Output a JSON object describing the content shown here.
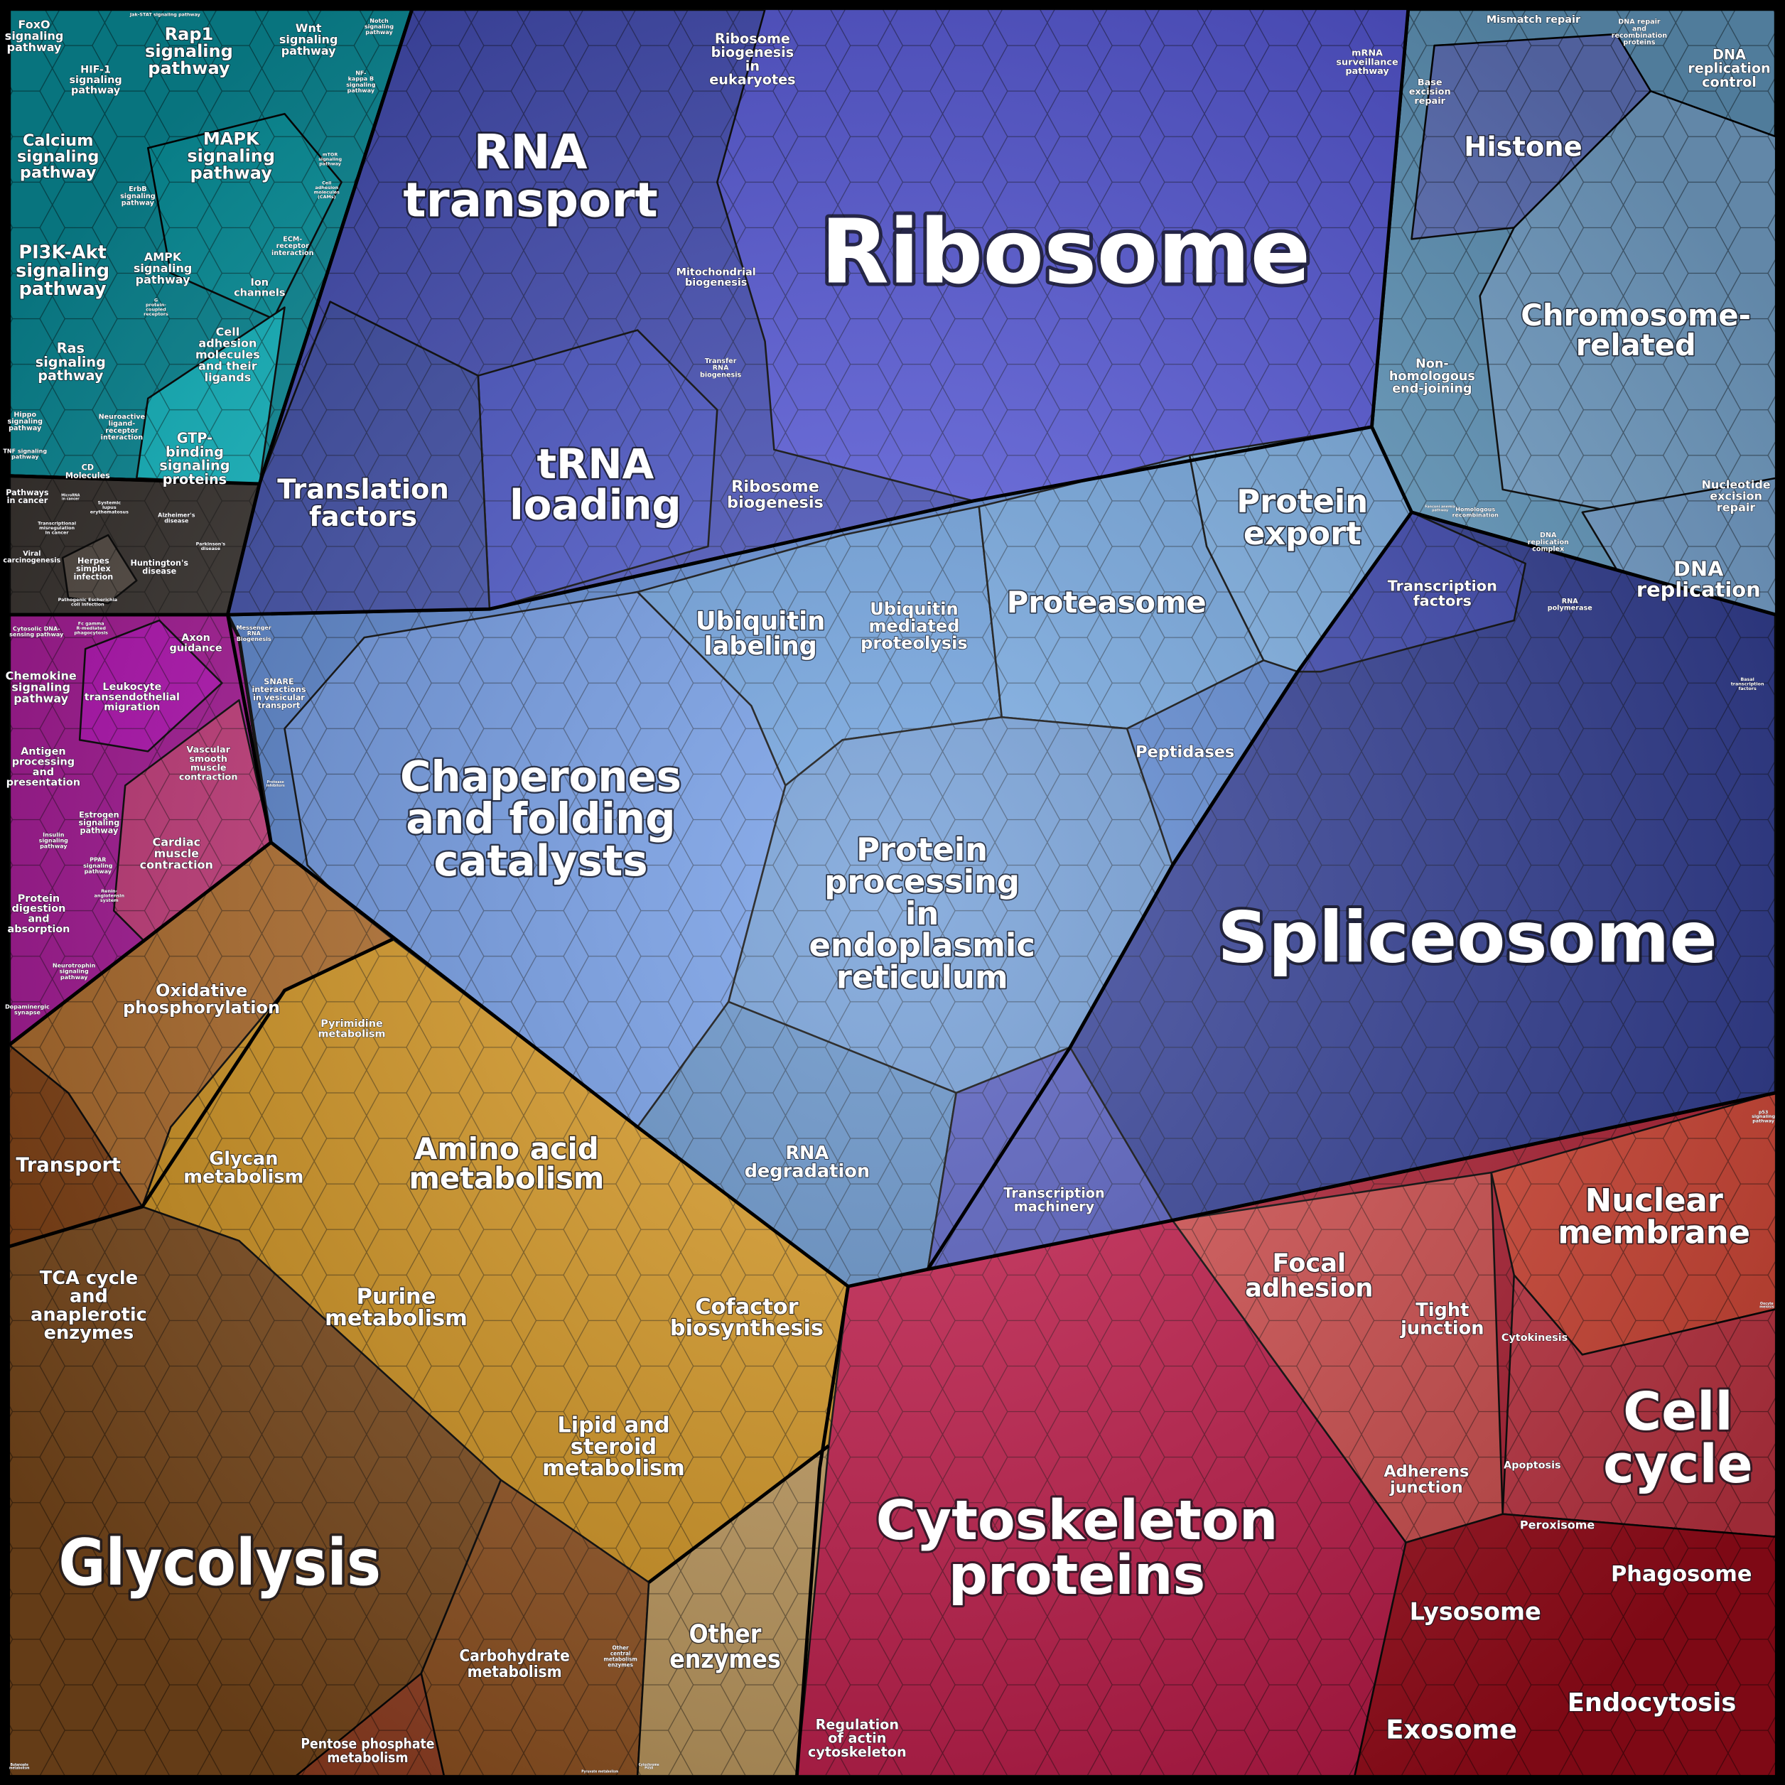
{
  "colors": {
    "signaling": "#0b9aa8",
    "disease": "#3a3430",
    "immune_muscle": "#b0169f",
    "translation": "#4650c0",
    "ribosome": "#5660e0",
    "chromosome": "#6aa6cf",
    "folding": "#5a88d6",
    "spliceosome": "#2f3c98",
    "cellular_processes": "#b82035",
    "amber_metabolism": "#dc9a1e",
    "brown_metabolism": "#8a5022",
    "other_enzymes": "#c8a060"
  },
  "labels": {
    "foxo": [
      "FoxO",
      "signaling",
      "pathway"
    ],
    "jak_stat": [
      "Jak-STAT signaling pathway"
    ],
    "rap1": [
      "Rap1",
      "signaling",
      "pathway"
    ],
    "hif1": [
      "HIF-1",
      "signaling",
      "pathway"
    ],
    "wnt": [
      "Wnt",
      "signaling",
      "pathway"
    ],
    "notch": [
      "Notch",
      "signaling",
      "pathway"
    ],
    "nfkb": [
      "NF-",
      "kappa B",
      "signaling",
      "pathway"
    ],
    "mtor": [
      "mTOR",
      "signaling",
      "pathway"
    ],
    "calcium": [
      "Calcium",
      "signaling",
      "pathway"
    ],
    "mapk": [
      "MAPK",
      "signaling",
      "pathway"
    ],
    "erbb": [
      "ErbB",
      "signaling",
      "pathway"
    ],
    "cams": [
      "Cell",
      "adhesion",
      "molecules",
      "(CAMs)"
    ],
    "pi3k": [
      "PI3K-Akt",
      "signaling",
      "pathway"
    ],
    "ampk": [
      "AMPK",
      "signaling",
      "pathway"
    ],
    "ecm": [
      "ECM-",
      "receptor",
      "interaction"
    ],
    "ion": [
      "Ion",
      "channels"
    ],
    "cell_adhesion_ligands": [
      "Cell",
      "adhesion",
      "molecules",
      "and their",
      "ligands"
    ],
    "ras": [
      "Ras",
      "signaling",
      "pathway"
    ],
    "gpcr": [
      "G",
      "protein-",
      "coupled",
      "receptors"
    ],
    "hippo": [
      "Hippo",
      "signaling",
      "pathway"
    ],
    "neuroactive": [
      "Neuroactive",
      "ligand-",
      "receptor",
      "interaction"
    ],
    "tnf": [
      "TNF signaling",
      "pathway"
    ],
    "cd": [
      "CD",
      "Molecules"
    ],
    "gtp": [
      "GTP-",
      "binding",
      "signaling",
      "proteins"
    ],
    "pathways_cancer": [
      "Pathways",
      "in cancer"
    ],
    "microrna": [
      "MicroRNA",
      "in cancer"
    ],
    "lupus": [
      "Systemic",
      "lupus",
      "erythematosus"
    ],
    "alzheimer": [
      "Alzheimer's",
      "disease"
    ],
    "transcriptional_misreg": [
      "Transcriptional",
      "misregulation",
      "in cancer"
    ],
    "viral": [
      "Viral",
      "carcinogenesis"
    ],
    "herpes": [
      "Herpes",
      "simplex",
      "infection"
    ],
    "huntington": [
      "Huntington's",
      "disease"
    ],
    "parkinson": [
      "Parkinson's",
      "disease"
    ],
    "ecoli": [
      "Pathogenic Escherichia",
      "coli infection"
    ],
    "cytosolic_dna": [
      "Cytosolic DNA-",
      "sensing pathway"
    ],
    "fc_gamma": [
      "Fc gamma",
      "R-mediated",
      "phagocytosis"
    ],
    "chemokine": [
      "Chemokine",
      "signaling",
      "pathway"
    ],
    "leukocyte": [
      "Leukocyte",
      "transendothelial",
      "migration"
    ],
    "axon": [
      "Axon",
      "guidance"
    ],
    "antigen": [
      "Antigen",
      "processing",
      "and",
      "presentation"
    ],
    "vascular": [
      "Vascular",
      "smooth",
      "muscle",
      "contraction"
    ],
    "estrogen": [
      "Estrogen",
      "signaling",
      "pathway"
    ],
    "insulin": [
      "Insulin",
      "signaling",
      "pathway"
    ],
    "ppar": [
      "PPAR",
      "signaling",
      "pathway"
    ],
    "cardiac": [
      "Cardiac",
      "muscle",
      "contraction"
    ],
    "protein_digestion": [
      "Protein",
      "digestion",
      "and",
      "absorption"
    ],
    "renin": [
      "Renin-",
      "angiotensin",
      "system"
    ],
    "neurotrophin": [
      "Neurotrophin",
      "signaling",
      "pathway"
    ],
    "dopaminergic": [
      "Dopaminergic",
      "synapse"
    ],
    "rna_transport": [
      "RNA",
      "transport"
    ],
    "ribosome_biogenesis_euk": [
      "Ribosome",
      "biogenesis",
      "in",
      "eukaryotes"
    ],
    "ribosome": [
      "Ribosome"
    ],
    "mito_biogenesis": [
      "Mitochondrial",
      "biogenesis"
    ],
    "trna_biogenesis": [
      "Transfer",
      "RNA",
      "biogenesis"
    ],
    "translation_factors": [
      "Translation",
      "factors"
    ],
    "trna_loading": [
      "tRNA",
      "loading"
    ],
    "ribosome_biogenesis": [
      "Ribosome",
      "biogenesis"
    ],
    "mrna_biogenesis": [
      "Messenger",
      "RNA",
      "Biogenesis"
    ],
    "mrna_surveillance": [
      "mRNA",
      "surveillance",
      "pathway"
    ],
    "mismatch": [
      "Mismatch repair"
    ],
    "dna_repair_recomb": [
      "DNA repair",
      "and",
      "recombination",
      "proteins"
    ],
    "dna_rep_control": [
      "DNA",
      "replication",
      "control"
    ],
    "base_excision": [
      "Base",
      "excision",
      "repair"
    ],
    "histone": [
      "Histone"
    ],
    "chromosome": [
      "Chromosome-",
      "related"
    ],
    "nhej": [
      "Non-",
      "homologous",
      "end-joining"
    ],
    "nucleotide_excision": [
      "Nucleotide",
      "excision",
      "repair"
    ],
    "fanconi": [
      "Fanconi anemia",
      "pathway"
    ],
    "homologous": [
      "Homologous",
      "recombination"
    ],
    "dna_rep_complex": [
      "DNA",
      "replication",
      "complex"
    ],
    "dna_replication": [
      "DNA",
      "replication"
    ],
    "transcription_factors": [
      "Transcription",
      "factors"
    ],
    "rna_polymerase": [
      "RNA",
      "polymerase"
    ],
    "basal_tf": [
      "Basal",
      "transcription",
      "factors"
    ],
    "ubiquitin_labeling": [
      "Ubiquitin",
      "labeling"
    ],
    "ubiquitin_proteolysis": [
      "Ubiquitin",
      "mediated",
      "proteolysis"
    ],
    "proteasome": [
      "Proteasome"
    ],
    "protein_export": [
      "Protein",
      "export"
    ],
    "snare": [
      "SNARE",
      "interactions",
      "in vesicular",
      "transport"
    ],
    "proteasome_inhib": [
      "Protease",
      "inhibitors"
    ],
    "chaperones": [
      "Chaperones",
      "and folding",
      "catalysts"
    ],
    "peptidases": [
      "Peptidases"
    ],
    "pper": [
      "Protein",
      "processing",
      "in",
      "endoplasmic",
      "reticulum"
    ],
    "rna_degradation": [
      "RNA",
      "degradation"
    ],
    "spliceosome": [
      "Spliceosome"
    ],
    "transcription_machinery": [
      "Transcription",
      "machinery"
    ],
    "p53": [
      "p53",
      "signaling",
      "pathway"
    ],
    "nuclear_membrane": [
      "Nuclear",
      "membrane"
    ],
    "focal_adhesion": [
      "Focal",
      "adhesion"
    ],
    "tight_junction": [
      "Tight",
      "junction"
    ],
    "cytokinesis": [
      "Cytokinesis"
    ],
    "cell_cycle": [
      "Cell",
      "cycle"
    ],
    "oocyte": [
      "Oocyte",
      "meiosis"
    ],
    "apoptosis": [
      "Apoptosis"
    ],
    "adherens": [
      "Adherens",
      "junction"
    ],
    "peroxisome": [
      "Peroxisome"
    ],
    "phagosome": [
      "Phagosome"
    ],
    "lysosome": [
      "Lysosome"
    ],
    "exosome": [
      "Exosome"
    ],
    "endocytosis": [
      "Endocytosis"
    ],
    "cytoskeleton": [
      "Cytoskeleton",
      "proteins"
    ],
    "actin": [
      "Regulation",
      "of actin",
      "cytoskeleton"
    ],
    "oxphos": [
      "Oxidative",
      "phosphorylation"
    ],
    "pyrimidine": [
      "Pyrimidine",
      "metabolism"
    ],
    "transport": [
      "Transport"
    ],
    "glycan": [
      "Glycan",
      "metabolism"
    ],
    "amino_acid": [
      "Amino acid",
      "metabolism"
    ],
    "tca": [
      "TCA cycle",
      "and",
      "anaplerotic",
      "enzymes"
    ],
    "purine": [
      "Purine",
      "metabolism"
    ],
    "cofactor": [
      "Cofactor",
      "biosynthesis"
    ],
    "lipid": [
      "Lipid and",
      "steroid",
      "metabolism"
    ],
    "glycolysis": [
      "Glycolysis"
    ],
    "carbohydrate": [
      "Carbohydrate",
      "metabolism"
    ],
    "other_central": [
      "Other",
      "central",
      "metabolism",
      "enzymes"
    ],
    "other_enzymes": [
      "Other",
      "enzymes"
    ],
    "pentose": [
      "Pentose phosphate",
      "metabolism"
    ],
    "butanoate": [
      "Butanoate",
      "metabolism"
    ],
    "pyruvate": [
      "Pyruvate metabolism"
    ],
    "p450": [
      "Cytochrome",
      "P450"
    ]
  }
}
